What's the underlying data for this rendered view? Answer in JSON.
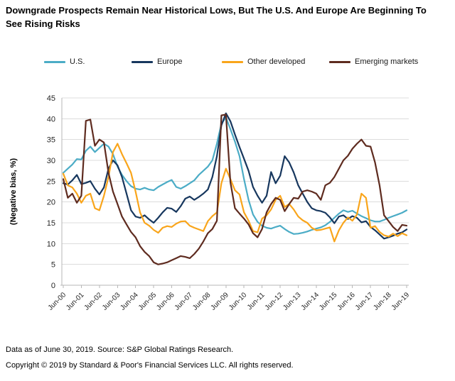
{
  "title": "Downgrade Prospects Remain Near Historical Lows, But The U.S. And Europe Are Beginning To See Rising Risks",
  "footer": {
    "line1": "Data as of June 30, 2019. Source: S&P Global Ratings Research.",
    "line2": "Copyright © 2019 by Standard & Poor's Financial Services LLC. All rights reserved."
  },
  "colors": {
    "us": "#4BACC6",
    "europe": "#17375E",
    "other_developed": "#F9A51B",
    "emerging_markets": "#5E2B1F",
    "gridline": "#DCDCDC",
    "axis": "#B7B7B7",
    "tick_text": "#262626"
  },
  "chart_data": {
    "type": "line",
    "title": "Downgrade Prospects Remain Near Historical Lows, But The U.S. And Europe Are Beginning To See Rising Risks",
    "ylabel": "(Negative bias, %)",
    "xlabel": "",
    "ylim": [
      0,
      45
    ],
    "y_ticks": [
      0,
      5,
      10,
      15,
      20,
      25,
      30,
      35,
      40,
      45
    ],
    "x_tick_labels": [
      "Jun-00",
      "Jun-01",
      "Jun-02",
      "Jun-03",
      "Jun-04",
      "Jun-05",
      "Jun-06",
      "Jun-07",
      "Jun-08",
      "Jun-09",
      "Jun-10",
      "Jun-11",
      "Jun-12",
      "Jun-13",
      "Jun-14",
      "Jun-15",
      "Jun-16",
      "Jun-17",
      "Jun-18",
      "Jun-19"
    ],
    "x_start": 2000.5,
    "x_step": 0.25,
    "x_end": 2019.5,
    "grid": true,
    "legend_position": "top",
    "series": [
      {
        "name": "U.S.",
        "color": "#4BACC6",
        "values": [
          27,
          28,
          29,
          30.3,
          30.2,
          32.3,
          33.3,
          32,
          33,
          34,
          33.3,
          31.5,
          28.5,
          26.5,
          25,
          23.8,
          23.2,
          23,
          23.4,
          23,
          22.8,
          23.6,
          24.2,
          24.8,
          25.3,
          23.6,
          23.2,
          23.8,
          24.5,
          25.2,
          26.5,
          27.5,
          28.5,
          30,
          34,
          38.8,
          40.3,
          37.5,
          34.5,
          31,
          25.5,
          20.5,
          17,
          15.2,
          14.3,
          13.8,
          13.6,
          14,
          14.3,
          13.5,
          12.8,
          12.3,
          12.4,
          12.6,
          12.9,
          13.3,
          13.6,
          13.9,
          14.4,
          15.2,
          16.2,
          17.2,
          18,
          17.6,
          17.9,
          17.2,
          16.6,
          16.1,
          15.6,
          15.3,
          15.3,
          15.7,
          16.2,
          16.6,
          17,
          17.4,
          18
        ]
      },
      {
        "name": "Europe",
        "color": "#17375E",
        "values": [
          24.5,
          24.2,
          25.2,
          26.5,
          24.3,
          24.6,
          25,
          23.2,
          21.8,
          23.5,
          28,
          30,
          28.8,
          26,
          22,
          18,
          16.5,
          16.2,
          16.8,
          15.8,
          15,
          16.2,
          17.5,
          18.6,
          18.4,
          17.6,
          19,
          20.8,
          21.3,
          20.5,
          21.2,
          22,
          23,
          26,
          31,
          38.4,
          41.3,
          39.4,
          36.2,
          33.2,
          30.4,
          27.5,
          23.6,
          21.5,
          19.8,
          21.5,
          27.2,
          24.5,
          26.3,
          31,
          29.5,
          27.1,
          24,
          22,
          20,
          18.5,
          18,
          17.8,
          17.4,
          16.3,
          14.9,
          16.5,
          16.8,
          15.9,
          16.6,
          16.2,
          15.1,
          15.4,
          14,
          13.2,
          12.2,
          11.2,
          11.5,
          11.9,
          12.4,
          12.7,
          13.4
        ]
      },
      {
        "name": "Other developed",
        "color": "#F9A51B",
        "values": [
          26.8,
          24,
          23.5,
          22,
          19.8,
          21.5,
          22,
          18.5,
          18,
          21.5,
          26,
          32,
          34,
          31.5,
          29.3,
          27,
          22.5,
          17.5,
          15,
          14.3,
          13.3,
          12.6,
          13.8,
          14.2,
          14,
          14.8,
          15.3,
          15.4,
          14.3,
          13.8,
          13.4,
          13,
          15.4,
          16.6,
          17.5,
          24.5,
          28,
          25.5,
          22.8,
          21.8,
          17.5,
          15.5,
          13,
          12.7,
          16,
          16.8,
          18.2,
          20.5,
          21.5,
          18.8,
          19.5,
          18.2,
          16.5,
          15.6,
          15,
          13.8,
          13.2,
          13.3,
          13.6,
          13.9,
          10.5,
          13.2,
          15,
          16.3,
          15.5,
          17,
          22,
          21,
          13.8,
          14.2,
          12.8,
          12,
          11.7,
          12.4,
          11.8,
          12.5,
          12
        ]
      },
      {
        "name": "Emerging markets",
        "color": "#5E2B1F",
        "values": [
          25.5,
          21,
          22,
          19.8,
          21.5,
          39.5,
          39.8,
          33.5,
          35,
          34.3,
          27,
          22.5,
          19.5,
          16.5,
          14.6,
          12.8,
          11.5,
          9.4,
          8,
          7,
          5.5,
          5,
          5.2,
          5.5,
          6,
          6.5,
          7,
          6.8,
          6.5,
          7.5,
          8.8,
          10.5,
          12.5,
          13.5,
          15.5,
          40.8,
          41,
          24.7,
          18.5,
          17.2,
          16,
          14.6,
          12.5,
          11.5,
          13.5,
          17.5,
          19.5,
          21,
          20.5,
          17.8,
          19.5,
          21,
          20.8,
          22.5,
          22.8,
          22.5,
          22,
          20.5,
          24,
          24.6,
          26,
          28,
          30,
          31.1,
          32.8,
          34,
          35,
          33.5,
          33.3,
          29.5,
          24,
          16.8,
          15.4,
          14,
          13,
          14.5,
          14.3
        ]
      }
    ]
  },
  "legend_lefts": [
    62,
    185,
    312,
    463
  ]
}
